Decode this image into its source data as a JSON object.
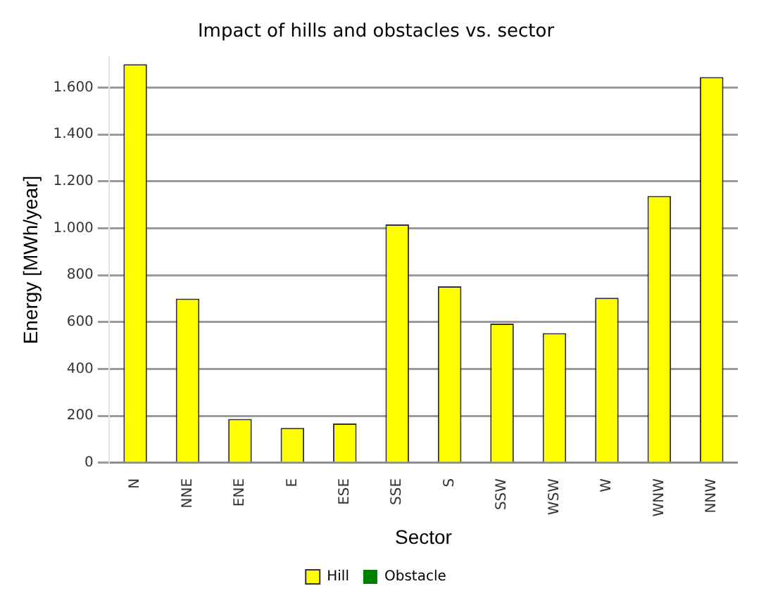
{
  "chart_data": {
    "type": "bar",
    "title": "Impact of hills and obstacles vs. sector",
    "xlabel": "Sector",
    "ylabel": "Energy [MWh/year]",
    "categories": [
      "N",
      "NNE",
      "ENE",
      "E",
      "ESE",
      "SSE",
      "S",
      "SSW",
      "WSW",
      "W",
      "WNW",
      "NNW"
    ],
    "series": [
      {
        "name": "Hill",
        "color": "#ffff00",
        "values": [
          1700,
          700,
          187,
          149,
          168,
          1017,
          753,
          594,
          553,
          704,
          1138,
          1645
        ]
      },
      {
        "name": "Obstacle",
        "color": "#008000",
        "values": [
          0,
          0,
          0,
          0,
          0,
          0,
          0,
          0,
          0,
          0,
          0,
          0
        ]
      }
    ],
    "stacked": true,
    "ylim": [
      0,
      1730
    ],
    "yticks": [
      0,
      200,
      400,
      600,
      800,
      {
        "value": 1000,
        "label": "1.000"
      },
      {
        "value": 1200,
        "label": "1.200"
      },
      {
        "value": 1400,
        "label": "1.400"
      },
      {
        "value": 1600,
        "label": "1.600"
      }
    ],
    "grid": "y",
    "legend": "bottom"
  }
}
